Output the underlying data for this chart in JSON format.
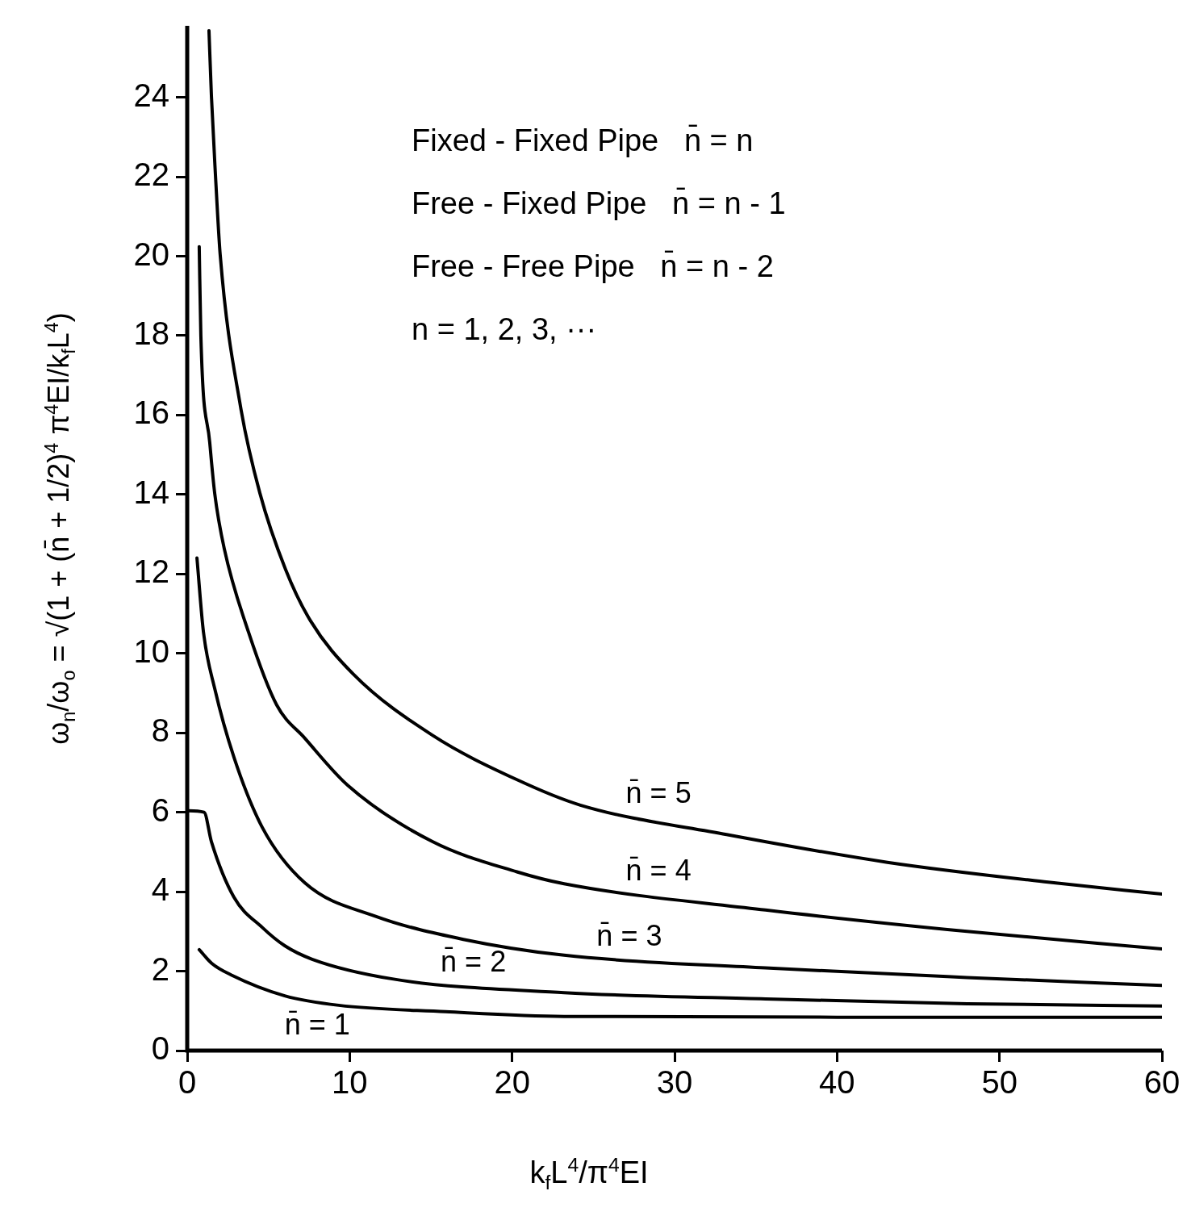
{
  "chart_data": {
    "type": "line",
    "xlabel": "k$_{f}$L$^{4}$/π$^{4}$EI",
    "ylabel": "ω$_{n}$/ω$_{o}$ = √(1 + (n̄ + 1/2)$^{4}$ π$^{4}$EI/k$_{f}$L$^{4}$)",
    "annotations": [
      "Fixed - Fixed Pipe   n̄ = n",
      "Free - Fixed Pipe   n̄ = n - 1",
      "Free - Free Pipe   n̄ = n - 2",
      "n = 1, 2, 3, ···"
    ],
    "xlim": [
      0,
      60
    ],
    "xticks": [
      0,
      10,
      20,
      30,
      40,
      50,
      60
    ],
    "ylim": [
      0,
      25.8
    ],
    "yticks": [
      0,
      2,
      4,
      6,
      8,
      10,
      12,
      14,
      16,
      18,
      20,
      22,
      24
    ],
    "series": [
      {
        "name": "n̄ = 5",
        "color": "#000000",
        "x": [
          1.34,
          1.49,
          1.74,
          2.03,
          3.28,
          4.47,
          6.05,
          7.59,
          10.22,
          15.09,
          20.3,
          24.2,
          33.2,
          43.1,
          53.0,
          60
        ],
        "values": [
          25.68,
          24.04,
          22.04,
          20.04,
          16.22,
          14.04,
          12.12,
          10.82,
          9.48,
          7.94,
          6.82,
          6.18,
          5.44,
          4.74,
          4.24,
          3.94
        ]
      },
      {
        "name": "n̄ = 4",
        "color": "#000000",
        "x": [
          0.74,
          0.84,
          1.39,
          1.69,
          2.28,
          3.77,
          5.51,
          7.25,
          9.88,
          15.1,
          20.3,
          23.2,
          35.6,
          48.0,
          60
        ],
        "values": [
          20.24,
          18.0,
          15.3,
          14.04,
          12.64,
          10.54,
          8.7,
          7.86,
          6.68,
          5.26,
          4.5,
          4.2,
          3.54,
          3.0,
          2.56
        ]
      },
      {
        "name": "n̄ = 3",
        "color": "#000000",
        "x": [
          0.6,
          1.0,
          1.69,
          2.88,
          4.62,
          7.25,
          11.6,
          17,
          23.2,
          35.6,
          48,
          60
        ],
        "values": [
          12.4,
          10.54,
          9.12,
          7.38,
          5.62,
          4.22,
          3.38,
          2.8,
          2.4,
          2.08,
          1.84,
          1.64
        ]
      },
      {
        "name": "n̄ = 2",
        "color": "#000000",
        "x": [
          0,
          1.04,
          1.49,
          2.88,
          4.62,
          6.0,
          7.69,
          12.7,
          23.2,
          35.6,
          48,
          60
        ],
        "values": [
          6.04,
          6.0,
          5.26,
          3.86,
          3.1,
          2.64,
          2.3,
          1.8,
          1.46,
          1.3,
          1.18,
          1.12
        ]
      },
      {
        "name": "n̄ = 1",
        "color": "#000000",
        "x": [
          0.74,
          1.5,
          2.73,
          6.0,
          9.33,
          15.9,
          23.2,
          40,
          60
        ],
        "values": [
          2.54,
          2.2,
          1.9,
          1.38,
          1.14,
          0.98,
          0.86,
          0.84,
          0.84
        ]
      }
    ]
  }
}
